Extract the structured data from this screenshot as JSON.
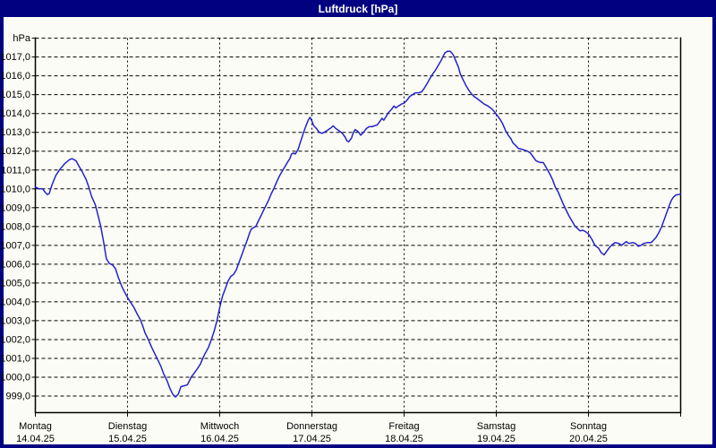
{
  "window": {
    "title": "Luftdruck [hPa]",
    "title_bar_color": "#000080",
    "client_background": "#fcfcf6"
  },
  "chart_data": {
    "type": "line",
    "title": "Luftdruck [hPa]",
    "ylabel": "hPa",
    "grid": true,
    "legend_position": "none",
    "ylim": [
      998.1,
      1018.0
    ],
    "y_tick_step": 1.0,
    "y_ticks": [
      {
        "value": 1017,
        "label": "1017,0"
      },
      {
        "value": 1016,
        "label": "1016,0"
      },
      {
        "value": 1015,
        "label": "1015,0"
      },
      {
        "value": 1014,
        "label": "1014,0"
      },
      {
        "value": 1013,
        "label": "1013,0"
      },
      {
        "value": 1012,
        "label": "1012,0"
      },
      {
        "value": 1011,
        "label": "1011,0"
      },
      {
        "value": 1010,
        "label": "1010,0"
      },
      {
        "value": 1009,
        "label": "1009,0"
      },
      {
        "value": 1008,
        "label": "1008,0"
      },
      {
        "value": 1007,
        "label": "1007,0"
      },
      {
        "value": 1006,
        "label": "1006,0"
      },
      {
        "value": 1005,
        "label": "1005,0"
      },
      {
        "value": 1004,
        "label": "1004,0"
      },
      {
        "value": 1003,
        "label": "1003,0"
      },
      {
        "value": 1002,
        "label": "1002,0"
      },
      {
        "value": 1001,
        "label": "1001,0"
      },
      {
        "value": 1000,
        "label": "1000,0"
      },
      {
        "value": 999,
        "label": "999,0"
      }
    ],
    "x_axis_days": [
      {
        "weekday": "Montag",
        "date": "14.04.25"
      },
      {
        "weekday": "Dienstag",
        "date": "15.04.25"
      },
      {
        "weekday": "Mittwoch",
        "date": "16.04.25"
      },
      {
        "weekday": "Donnerstag",
        "date": "17.04.25"
      },
      {
        "weekday": "Freitag",
        "date": "18.04.25"
      },
      {
        "weekday": "Samstag",
        "date": "19.04.25"
      },
      {
        "weekday": "Sonntag",
        "date": "20.04.25"
      }
    ],
    "series": [
      {
        "name": "Luftdruck",
        "unit": "hPa",
        "color": "#2222cc",
        "points_days_hpa": [
          [
            0.0,
            1010.1
          ],
          [
            0.04,
            1010.0
          ],
          [
            0.08,
            1010.0
          ],
          [
            0.11,
            1009.8
          ],
          [
            0.13,
            1009.7
          ],
          [
            0.15,
            1009.75
          ],
          [
            0.18,
            1010.2
          ],
          [
            0.22,
            1010.7
          ],
          [
            0.26,
            1011.0
          ],
          [
            0.32,
            1011.35
          ],
          [
            0.37,
            1011.55
          ],
          [
            0.4,
            1011.6
          ],
          [
            0.44,
            1011.5
          ],
          [
            0.48,
            1011.15
          ],
          [
            0.51,
            1010.9
          ],
          [
            0.55,
            1010.5
          ],
          [
            0.58,
            1010.1
          ],
          [
            0.61,
            1009.6
          ],
          [
            0.65,
            1009.15
          ],
          [
            0.68,
            1008.6
          ],
          [
            0.71,
            1008.0
          ],
          [
            0.74,
            1007.2
          ],
          [
            0.77,
            1006.3
          ],
          [
            0.8,
            1006.05
          ],
          [
            0.84,
            1005.95
          ],
          [
            0.87,
            1005.75
          ],
          [
            0.9,
            1005.3
          ],
          [
            0.94,
            1004.8
          ],
          [
            0.97,
            1004.5
          ],
          [
            1.01,
            1004.15
          ],
          [
            1.07,
            1003.7
          ],
          [
            1.1,
            1003.4
          ],
          [
            1.14,
            1003.05
          ],
          [
            1.17,
            1002.65
          ],
          [
            1.19,
            1002.35
          ],
          [
            1.23,
            1001.95
          ],
          [
            1.26,
            1001.6
          ],
          [
            1.29,
            1001.3
          ],
          [
            1.33,
            1000.9
          ],
          [
            1.36,
            1000.6
          ],
          [
            1.39,
            1000.2
          ],
          [
            1.43,
            999.8
          ],
          [
            1.46,
            999.4
          ],
          [
            1.49,
            999.1
          ],
          [
            1.52,
            998.95
          ],
          [
            1.55,
            999.1
          ],
          [
            1.58,
            999.5
          ],
          [
            1.62,
            999.55
          ],
          [
            1.65,
            999.6
          ],
          [
            1.69,
            1000.0
          ],
          [
            1.72,
            1000.2
          ],
          [
            1.75,
            1000.4
          ],
          [
            1.79,
            1000.7
          ],
          [
            1.83,
            1001.15
          ],
          [
            1.88,
            1001.6
          ],
          [
            1.91,
            1002.0
          ],
          [
            1.94,
            1002.45
          ],
          [
            1.97,
            1003.0
          ],
          [
            2.0,
            1003.7
          ],
          [
            2.03,
            1004.3
          ],
          [
            2.06,
            1004.7
          ],
          [
            2.09,
            1005.1
          ],
          [
            2.12,
            1005.35
          ],
          [
            2.15,
            1005.45
          ],
          [
            2.18,
            1005.7
          ],
          [
            2.21,
            1006.1
          ],
          [
            2.24,
            1006.5
          ],
          [
            2.27,
            1006.9
          ],
          [
            2.3,
            1007.3
          ],
          [
            2.32,
            1007.6
          ],
          [
            2.34,
            1007.85
          ],
          [
            2.37,
            1007.95
          ],
          [
            2.39,
            1008.0
          ],
          [
            2.42,
            1008.3
          ],
          [
            2.45,
            1008.6
          ],
          [
            2.48,
            1008.9
          ],
          [
            2.5,
            1009.1
          ],
          [
            2.53,
            1009.4
          ],
          [
            2.56,
            1009.75
          ],
          [
            2.59,
            1010.05
          ],
          [
            2.62,
            1010.4
          ],
          [
            2.65,
            1010.7
          ],
          [
            2.68,
            1010.95
          ],
          [
            2.71,
            1011.2
          ],
          [
            2.74,
            1011.45
          ],
          [
            2.76,
            1011.6
          ],
          [
            2.78,
            1011.85
          ],
          [
            2.8,
            1011.9
          ],
          [
            2.82,
            1011.85
          ],
          [
            2.85,
            1012.1
          ],
          [
            2.87,
            1012.4
          ],
          [
            2.89,
            1012.7
          ],
          [
            2.91,
            1013.0
          ],
          [
            2.94,
            1013.4
          ],
          [
            2.96,
            1013.65
          ],
          [
            2.98,
            1013.8
          ],
          [
            3.0,
            1013.6
          ],
          [
            3.02,
            1013.35
          ],
          [
            3.05,
            1013.2
          ],
          [
            3.08,
            1013.0
          ],
          [
            3.11,
            1012.95
          ],
          [
            3.15,
            1013.05
          ],
          [
            3.18,
            1013.15
          ],
          [
            3.21,
            1013.25
          ],
          [
            3.23,
            1013.35
          ],
          [
            3.26,
            1013.2
          ],
          [
            3.29,
            1013.1
          ],
          [
            3.33,
            1012.95
          ],
          [
            3.36,
            1012.75
          ],
          [
            3.38,
            1012.55
          ],
          [
            3.4,
            1012.5
          ],
          [
            3.43,
            1012.7
          ],
          [
            3.45,
            1013.0
          ],
          [
            3.47,
            1013.15
          ],
          [
            3.5,
            1013.05
          ],
          [
            3.53,
            1012.85
          ],
          [
            3.56,
            1013.0
          ],
          [
            3.59,
            1013.2
          ],
          [
            3.62,
            1013.3
          ],
          [
            3.65,
            1013.3
          ],
          [
            3.68,
            1013.35
          ],
          [
            3.71,
            1013.4
          ],
          [
            3.74,
            1013.6
          ],
          [
            3.76,
            1013.75
          ],
          [
            3.78,
            1013.65
          ],
          [
            3.8,
            1013.8
          ],
          [
            3.83,
            1014.05
          ],
          [
            3.86,
            1014.2
          ],
          [
            3.89,
            1014.4
          ],
          [
            3.91,
            1014.3
          ],
          [
            3.94,
            1014.4
          ],
          [
            3.97,
            1014.5
          ],
          [
            4.0,
            1014.55
          ],
          [
            4.03,
            1014.7
          ],
          [
            4.06,
            1014.9
          ],
          [
            4.09,
            1015.0
          ],
          [
            4.12,
            1015.1
          ],
          [
            4.16,
            1015.1
          ],
          [
            4.19,
            1015.15
          ],
          [
            4.22,
            1015.35
          ],
          [
            4.25,
            1015.6
          ],
          [
            4.28,
            1015.85
          ],
          [
            4.31,
            1016.1
          ],
          [
            4.34,
            1016.3
          ],
          [
            4.37,
            1016.55
          ],
          [
            4.4,
            1016.8
          ],
          [
            4.42,
            1017.0
          ],
          [
            4.44,
            1017.2
          ],
          [
            4.47,
            1017.3
          ],
          [
            4.5,
            1017.3
          ],
          [
            4.52,
            1017.2
          ],
          [
            4.54,
            1017.05
          ],
          [
            4.56,
            1016.8
          ],
          [
            4.59,
            1016.45
          ],
          [
            4.61,
            1016.1
          ],
          [
            4.64,
            1015.8
          ],
          [
            4.67,
            1015.5
          ],
          [
            4.7,
            1015.25
          ],
          [
            4.73,
            1015.05
          ],
          [
            4.76,
            1014.9
          ],
          [
            4.79,
            1014.8
          ],
          [
            4.83,
            1014.65
          ],
          [
            4.87,
            1014.5
          ],
          [
            4.91,
            1014.4
          ],
          [
            4.95,
            1014.25
          ],
          [
            4.98,
            1014.1
          ],
          [
            5.01,
            1013.9
          ],
          [
            5.04,
            1013.7
          ],
          [
            5.07,
            1013.45
          ],
          [
            5.1,
            1013.1
          ],
          [
            5.13,
            1012.85
          ],
          [
            5.16,
            1012.65
          ],
          [
            5.18,
            1012.45
          ],
          [
            5.21,
            1012.3
          ],
          [
            5.24,
            1012.15
          ],
          [
            5.28,
            1012.1
          ],
          [
            5.31,
            1012.05
          ],
          [
            5.34,
            1012.0
          ],
          [
            5.37,
            1011.9
          ],
          [
            5.4,
            1011.7
          ],
          [
            5.43,
            1011.5
          ],
          [
            5.45,
            1011.45
          ],
          [
            5.48,
            1011.4
          ],
          [
            5.51,
            1011.4
          ],
          [
            5.54,
            1011.15
          ],
          [
            5.58,
            1010.8
          ],
          [
            5.61,
            1010.5
          ],
          [
            5.64,
            1010.1
          ],
          [
            5.67,
            1009.85
          ],
          [
            5.7,
            1009.5
          ],
          [
            5.73,
            1009.15
          ],
          [
            5.76,
            1008.85
          ],
          [
            5.79,
            1008.55
          ],
          [
            5.82,
            1008.3
          ],
          [
            5.85,
            1008.05
          ],
          [
            5.88,
            1007.9
          ],
          [
            5.91,
            1007.77
          ],
          [
            5.94,
            1007.8
          ],
          [
            5.97,
            1007.72
          ],
          [
            6.0,
            1007.6
          ],
          [
            6.04,
            1007.3
          ],
          [
            6.07,
            1007.0
          ],
          [
            6.11,
            1006.85
          ],
          [
            6.14,
            1006.6
          ],
          [
            6.17,
            1006.5
          ],
          [
            6.2,
            1006.7
          ],
          [
            6.23,
            1006.9
          ],
          [
            6.26,
            1007.05
          ],
          [
            6.29,
            1007.15
          ],
          [
            6.33,
            1007.1
          ],
          [
            6.36,
            1007.0
          ],
          [
            6.41,
            1007.2
          ],
          [
            6.44,
            1007.1
          ],
          [
            6.48,
            1007.15
          ],
          [
            6.51,
            1007.1
          ],
          [
            6.54,
            1006.95
          ],
          [
            6.57,
            1007.0
          ],
          [
            6.6,
            1007.1
          ],
          [
            6.64,
            1007.15
          ],
          [
            6.68,
            1007.15
          ],
          [
            6.7,
            1007.25
          ],
          [
            6.73,
            1007.4
          ],
          [
            6.76,
            1007.65
          ],
          [
            6.79,
            1007.95
          ],
          [
            6.82,
            1008.35
          ],
          [
            6.85,
            1008.75
          ],
          [
            6.88,
            1009.15
          ],
          [
            6.9,
            1009.4
          ],
          [
            6.92,
            1009.55
          ],
          [
            6.95,
            1009.68
          ],
          [
            6.98,
            1009.7
          ],
          [
            7.0,
            1009.72
          ]
        ]
      }
    ]
  }
}
